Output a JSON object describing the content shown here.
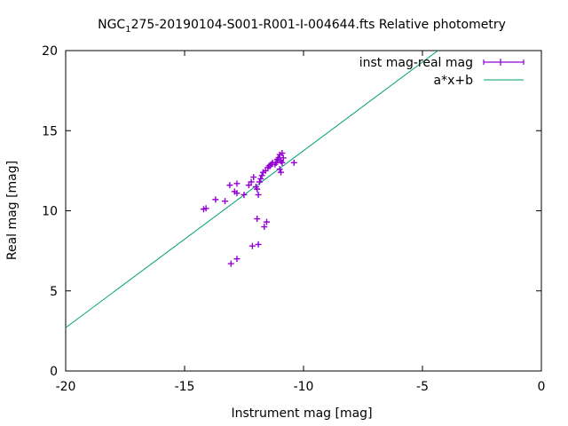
{
  "chart_data": {
    "type": "scatter",
    "title": {
      "prefix": "NGC",
      "subscript": "1",
      "suffix": "275-20190104-S001-R001-I-004644.fts Relative photometry"
    },
    "xlabel": "Instrument mag [mag]",
    "ylabel": "Real mag [mag]",
    "xlim": [
      -20,
      0
    ],
    "ylim": [
      0,
      20
    ],
    "xticks": [
      -20,
      -15,
      -10,
      -5,
      0
    ],
    "yticks": [
      0,
      5,
      10,
      15,
      20
    ],
    "grid": false,
    "legend_position": "top-right",
    "series": [
      {
        "name": "inst mag-real mag",
        "kind": "points-with-xerror",
        "color": "#9400d3",
        "points": [
          [
            -14.2,
            10.1
          ],
          [
            -14.1,
            10.15
          ],
          [
            -13.7,
            10.7
          ],
          [
            -13.3,
            10.6
          ],
          [
            -13.1,
            11.6
          ],
          [
            -12.9,
            11.2
          ],
          [
            -12.8,
            11.1
          ],
          [
            -12.8,
            11.7
          ],
          [
            -12.5,
            11.0
          ],
          [
            -12.3,
            11.6
          ],
          [
            -12.2,
            11.8
          ],
          [
            -12.1,
            12.1
          ],
          [
            -12.0,
            11.5
          ],
          [
            -11.95,
            11.35
          ],
          [
            -11.9,
            11.0
          ],
          [
            -11.85,
            11.8
          ],
          [
            -11.8,
            12.0
          ],
          [
            -11.75,
            12.2
          ],
          [
            -11.7,
            12.4
          ],
          [
            -11.6,
            12.5
          ],
          [
            -11.5,
            12.7
          ],
          [
            -11.45,
            12.8
          ],
          [
            -11.4,
            12.8
          ],
          [
            -11.35,
            12.9
          ],
          [
            -11.3,
            13.0
          ],
          [
            -11.2,
            12.9
          ],
          [
            -11.15,
            13.0
          ],
          [
            -11.1,
            13.2
          ],
          [
            -11.05,
            13.3
          ],
          [
            -11.0,
            13.5
          ],
          [
            -10.95,
            13.1
          ],
          [
            -10.9,
            13.0
          ],
          [
            -11.0,
            12.6
          ],
          [
            -10.95,
            12.4
          ],
          [
            -10.9,
            13.6
          ],
          [
            -10.85,
            13.3
          ],
          [
            -10.4,
            13.0
          ],
          [
            -11.95,
            9.5
          ],
          [
            -11.55,
            9.3
          ],
          [
            -11.65,
            9.0
          ],
          [
            -12.15,
            7.8
          ],
          [
            -11.9,
            7.9
          ],
          [
            -12.8,
            7.0
          ],
          [
            -13.05,
            6.7
          ]
        ]
      },
      {
        "name": "a*x+b",
        "kind": "line",
        "color": "#009e73",
        "from": [
          -20,
          2.7
        ],
        "to": [
          -4.35,
          20
        ]
      }
    ]
  }
}
